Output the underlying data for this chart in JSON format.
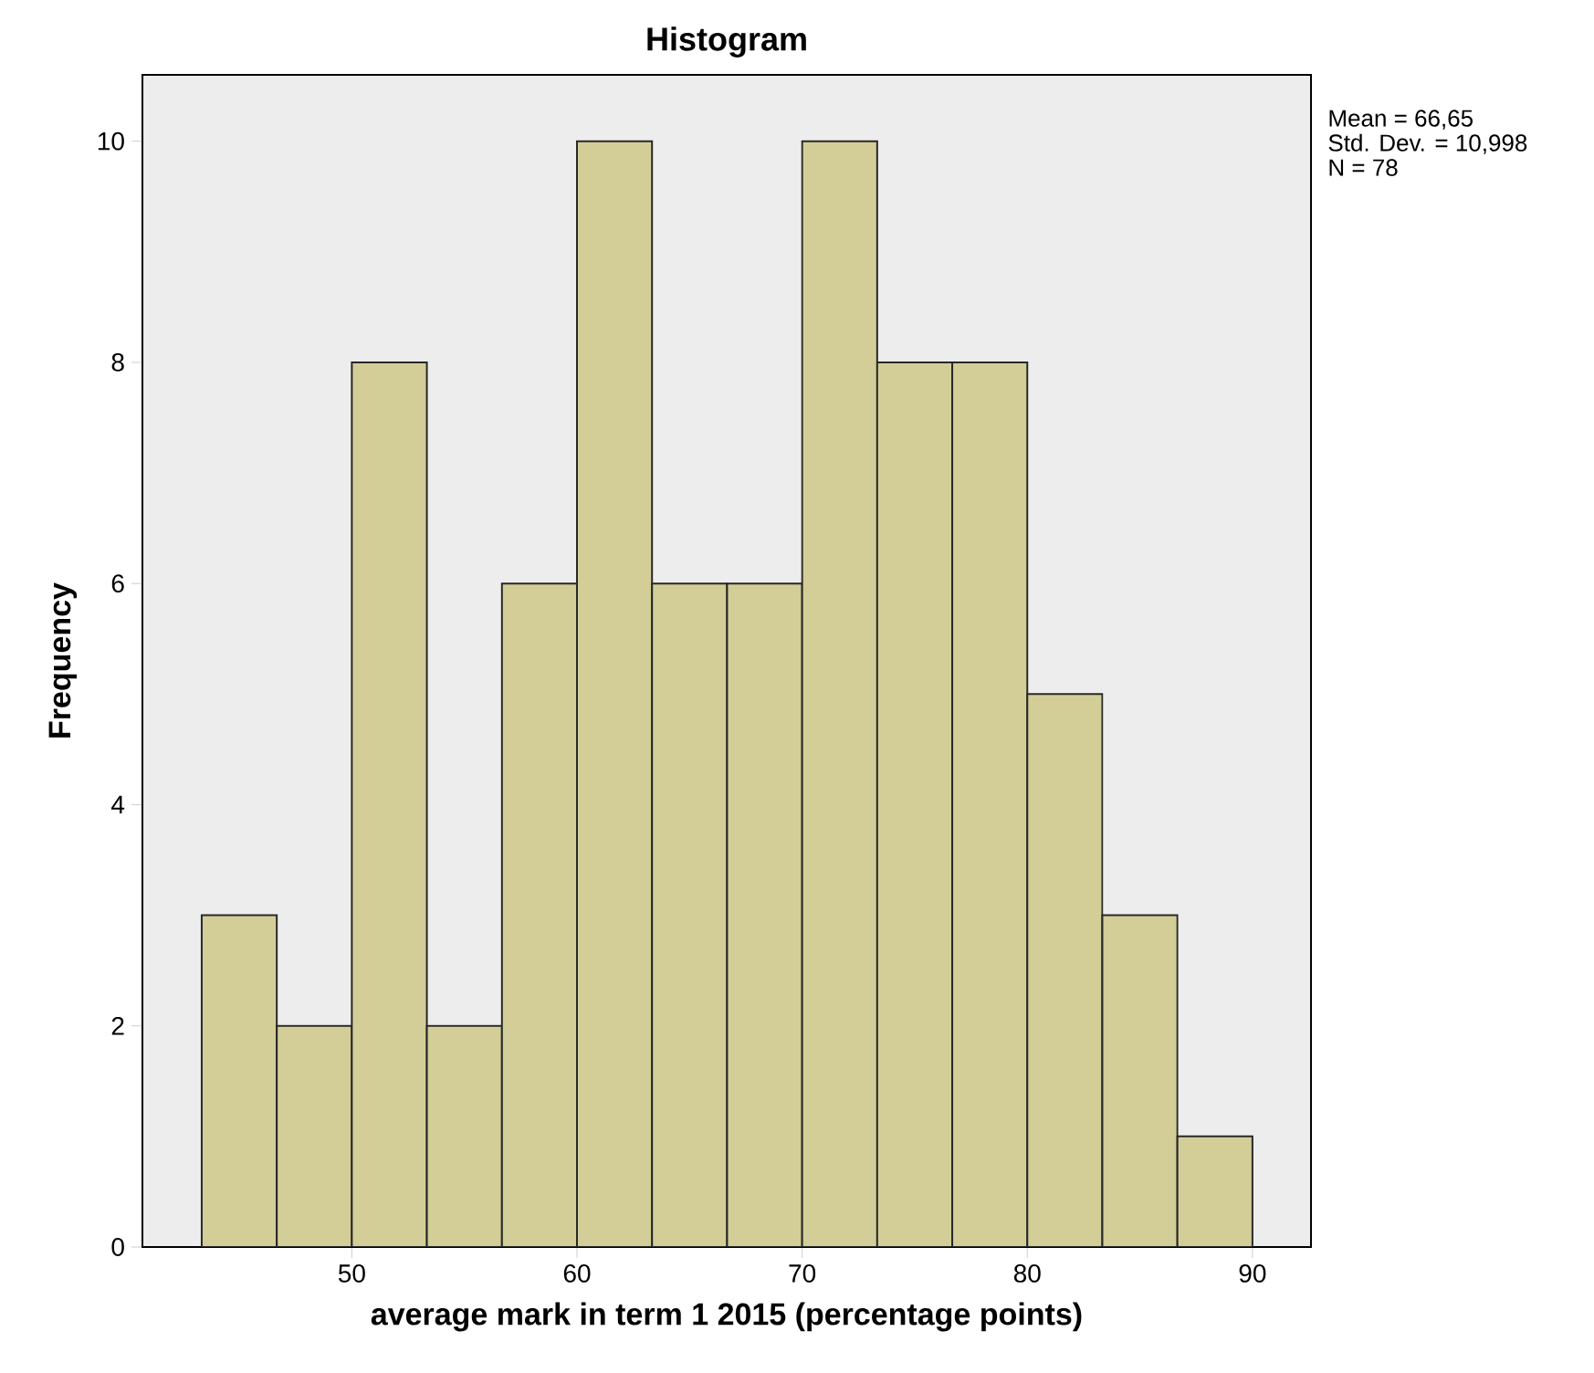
{
  "chart_data": {
    "type": "histogram",
    "title": "Histogram",
    "xlabel": "average mark in term 1 2015 (percentage points)",
    "ylabel": "Frequency",
    "bins": [
      43.333,
      46.667,
      50,
      53.333,
      56.667,
      60,
      63.333,
      66.667,
      70,
      73.333,
      76.667,
      80,
      83.333,
      86.667,
      90
    ],
    "values": [
      3,
      2,
      8,
      2,
      6,
      10,
      6,
      6,
      10,
      8,
      8,
      5,
      3,
      1
    ],
    "color": "#d3ce97",
    "xlim": [
      40.7,
      92.6
    ],
    "ylim": [
      0,
      10.6
    ],
    "xticks": [
      50,
      60,
      70,
      80,
      90
    ],
    "yticks": [
      0,
      2,
      4,
      6,
      8,
      10
    ],
    "annotations": [
      "Mean = 66,65",
      "Std. Dev. = 10,998",
      "N = 78"
    ]
  }
}
